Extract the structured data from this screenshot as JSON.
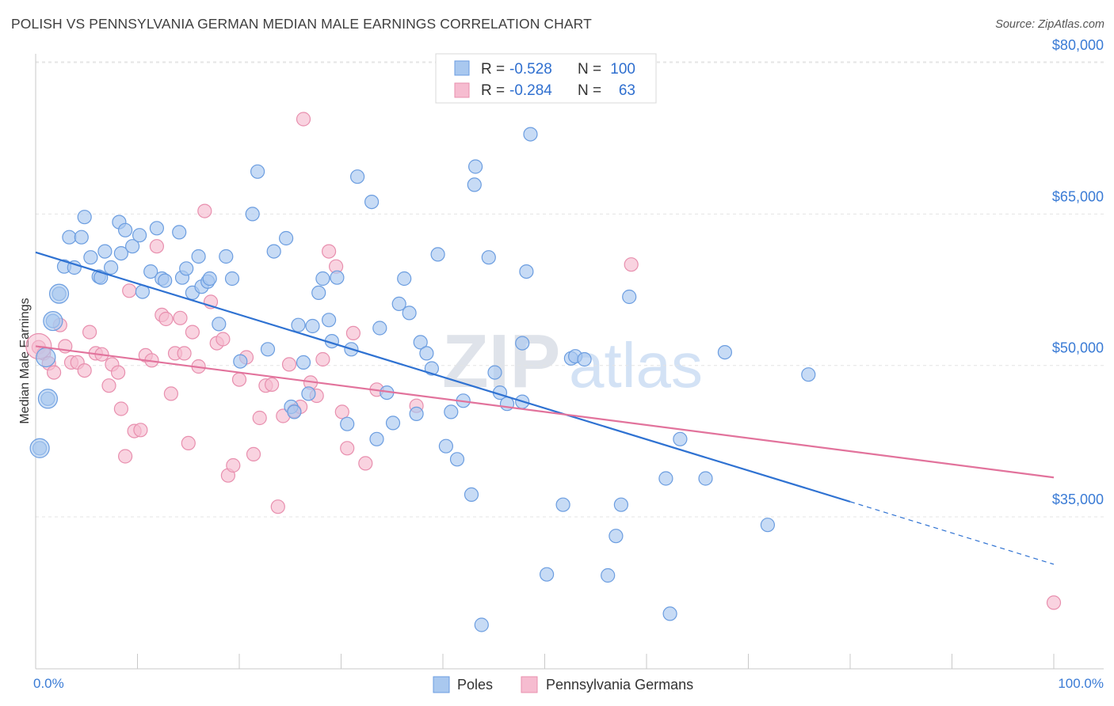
{
  "header": {
    "title": "POLISH VS PENNSYLVANIA GERMAN MEDIAN MALE EARNINGS CORRELATION CHART",
    "source": "Source: ZipAtlas.com"
  },
  "watermark": {
    "part1": "ZIP",
    "part2": "atlas"
  },
  "colors": {
    "blue_fill": "#a9c8ef",
    "blue_stroke": "#6b9de0",
    "blue_line": "#2f72d2",
    "pink_fill": "#f6bcd0",
    "pink_stroke": "#e88fae",
    "pink_line": "#e2739c"
  },
  "legend": {
    "rows": [
      {
        "r_label": "R =",
        "r_value": "-0.528",
        "n_label": "N =",
        "n_value": "100"
      },
      {
        "r_label": "R =",
        "r_value": "-0.284",
        "n_label": "N =",
        "n_value": "63"
      }
    ]
  },
  "bottom_legend": {
    "items": [
      "Poles",
      "Pennsylvania Germans"
    ]
  },
  "chart_data": {
    "type": "scatter",
    "title": "POLISH VS PENNSYLVANIA GERMAN MEDIAN MALE EARNINGS CORRELATION CHART",
    "ylabel": "Median Male Earnings",
    "xlabel": "",
    "x_tick_labels": [
      "0.0%",
      "100.0%"
    ],
    "y_tick_labels": [
      "$35,000",
      "$50,000",
      "$65,000",
      "$80,000"
    ],
    "y_ticks": [
      35000,
      50000,
      65000,
      80000
    ],
    "xlim": [
      0,
      100
    ],
    "ylim": [
      20000,
      82000
    ],
    "grid": true,
    "legend_position": "top-center",
    "series": [
      {
        "name": "Poles",
        "r": -0.528,
        "n": 100,
        "trend": {
          "x0": 0,
          "y0": 61200,
          "x1": 80,
          "y1": 36500,
          "dashed_to_x": 100,
          "dashed_to_y": 30300
        },
        "points": [
          [
            0.4,
            41800
          ],
          [
            1.2,
            46700
          ],
          [
            1.7,
            54400
          ],
          [
            2.3,
            57100
          ],
          [
            2.8,
            59800
          ],
          [
            3.3,
            62700
          ],
          [
            3.8,
            59700
          ],
          [
            4.5,
            62700
          ],
          [
            4.8,
            64700
          ],
          [
            5.4,
            60700
          ],
          [
            6.2,
            58800
          ],
          [
            6.4,
            58700
          ],
          [
            6.8,
            61300
          ],
          [
            7.4,
            59700
          ],
          [
            8.2,
            64200
          ],
          [
            8.4,
            61100
          ],
          [
            8.8,
            63400
          ],
          [
            9.5,
            61800
          ],
          [
            10.2,
            62900
          ],
          [
            10.5,
            57300
          ],
          [
            11.3,
            59300
          ],
          [
            11.9,
            63600
          ],
          [
            12.4,
            58600
          ],
          [
            12.7,
            58400
          ],
          [
            14.1,
            63200
          ],
          [
            14.4,
            58700
          ],
          [
            14.8,
            59600
          ],
          [
            15.4,
            57200
          ],
          [
            16.0,
            60800
          ],
          [
            16.3,
            57800
          ],
          [
            16.9,
            58300
          ],
          [
            17.1,
            58600
          ],
          [
            18.0,
            54100
          ],
          [
            18.7,
            60800
          ],
          [
            19.3,
            58600
          ],
          [
            20.1,
            50400
          ],
          [
            21.3,
            65000
          ],
          [
            21.8,
            69200
          ],
          [
            22.8,
            51600
          ],
          [
            23.4,
            61300
          ],
          [
            24.6,
            62600
          ],
          [
            25.1,
            45900
          ],
          [
            25.4,
            45400
          ],
          [
            25.8,
            54000
          ],
          [
            26.3,
            50300
          ],
          [
            26.8,
            47200
          ],
          [
            27.2,
            53900
          ],
          [
            27.8,
            57200
          ],
          [
            28.2,
            58600
          ],
          [
            28.8,
            54500
          ],
          [
            29.1,
            52400
          ],
          [
            29.6,
            58700
          ],
          [
            30.6,
            44200
          ],
          [
            31.0,
            51600
          ],
          [
            31.6,
            68700
          ],
          [
            33.0,
            66200
          ],
          [
            33.5,
            42700
          ],
          [
            33.8,
            53700
          ],
          [
            34.5,
            47300
          ],
          [
            35.1,
            44300
          ],
          [
            35.7,
            56100
          ],
          [
            36.2,
            58600
          ],
          [
            36.7,
            55200
          ],
          [
            37.4,
            45200
          ],
          [
            37.8,
            52300
          ],
          [
            38.4,
            51200
          ],
          [
            38.9,
            49700
          ],
          [
            39.5,
            61000
          ],
          [
            40.3,
            42000
          ],
          [
            40.8,
            45400
          ],
          [
            41.4,
            40700
          ],
          [
            42.0,
            46500
          ],
          [
            42.8,
            37200
          ],
          [
            43.1,
            67900
          ],
          [
            43.2,
            69700
          ],
          [
            44.5,
            60700
          ],
          [
            45.1,
            49300
          ],
          [
            45.6,
            47300
          ],
          [
            46.3,
            46200
          ],
          [
            47.8,
            52200
          ],
          [
            47.8,
            46400
          ],
          [
            48.2,
            59300
          ],
          [
            48.6,
            72900
          ],
          [
            50.2,
            29300
          ],
          [
            51.8,
            36200
          ],
          [
            52.6,
            50700
          ],
          [
            53.0,
            50900
          ],
          [
            53.9,
            50600
          ],
          [
            56.2,
            29200
          ],
          [
            57.0,
            33100
          ],
          [
            57.5,
            36200
          ],
          [
            58.3,
            56800
          ],
          [
            61.9,
            38800
          ],
          [
            62.3,
            25400
          ],
          [
            63.3,
            42700
          ],
          [
            65.8,
            38800
          ],
          [
            67.7,
            51300
          ],
          [
            71.9,
            34200
          ],
          [
            75.9,
            49100
          ],
          [
            43.8,
            24300
          ]
        ]
      },
      {
        "name": "Pennsylvania Germans",
        "r": -0.284,
        "n": 63,
        "trend": {
          "x0": 0,
          "y0": 51900,
          "x1": 100,
          "y1": 38900
        },
        "points": [
          [
            0.3,
            51800
          ],
          [
            0.8,
            51200
          ],
          [
            1.3,
            50200
          ],
          [
            1.8,
            49300
          ],
          [
            2.4,
            54000
          ],
          [
            2.9,
            51900
          ],
          [
            3.5,
            50300
          ],
          [
            4.1,
            50300
          ],
          [
            4.8,
            49500
          ],
          [
            5.3,
            53300
          ],
          [
            5.9,
            51200
          ],
          [
            6.5,
            51100
          ],
          [
            7.2,
            48000
          ],
          [
            7.5,
            50100
          ],
          [
            8.1,
            49300
          ],
          [
            8.4,
            45700
          ],
          [
            8.8,
            41000
          ],
          [
            9.2,
            57400
          ],
          [
            9.7,
            43500
          ],
          [
            10.3,
            43600
          ],
          [
            10.8,
            51000
          ],
          [
            11.4,
            50500
          ],
          [
            11.9,
            61800
          ],
          [
            12.4,
            55000
          ],
          [
            12.8,
            54600
          ],
          [
            13.3,
            47200
          ],
          [
            13.7,
            51200
          ],
          [
            14.2,
            54700
          ],
          [
            14.6,
            51200
          ],
          [
            15.0,
            42300
          ],
          [
            15.4,
            53300
          ],
          [
            16.0,
            49900
          ],
          [
            16.6,
            65300
          ],
          [
            17.2,
            56300
          ],
          [
            17.8,
            52200
          ],
          [
            18.4,
            52600
          ],
          [
            18.9,
            39100
          ],
          [
            19.4,
            40100
          ],
          [
            20.0,
            48600
          ],
          [
            20.7,
            50800
          ],
          [
            21.4,
            41200
          ],
          [
            22.0,
            44800
          ],
          [
            22.6,
            48000
          ],
          [
            23.2,
            48100
          ],
          [
            23.8,
            36000
          ],
          [
            24.3,
            45000
          ],
          [
            24.9,
            50100
          ],
          [
            25.4,
            45500
          ],
          [
            26.0,
            45900
          ],
          [
            26.3,
            74400
          ],
          [
            27.0,
            48300
          ],
          [
            27.6,
            47000
          ],
          [
            28.2,
            50600
          ],
          [
            28.8,
            61300
          ],
          [
            29.5,
            59800
          ],
          [
            30.1,
            45400
          ],
          [
            30.6,
            41800
          ],
          [
            31.2,
            53200
          ],
          [
            32.4,
            40300
          ],
          [
            33.5,
            47600
          ],
          [
            37.4,
            46000
          ],
          [
            58.5,
            60000
          ],
          [
            100.0,
            26500
          ]
        ]
      }
    ]
  }
}
